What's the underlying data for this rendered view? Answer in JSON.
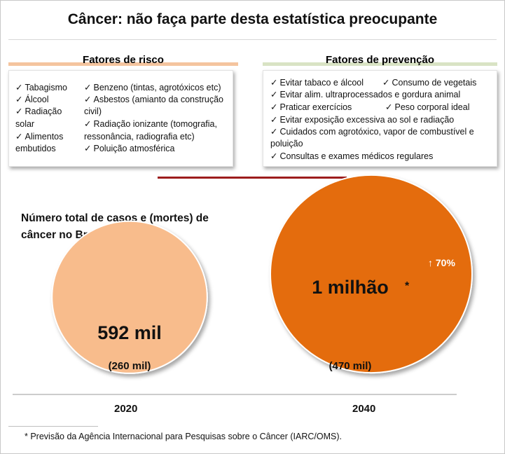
{
  "title": "Câncer: não faça parte desta estatística preocupante",
  "risk_panel": {
    "header": "Fatores de risco",
    "items": [
      "Tabagismo",
      "Álcool",
      "Radiação",
      "solar",
      "Alimentos",
      "embutidos",
      "Benzeno (tintas, agrotóxicos etc)",
      "Asbestos (amianto da construção",
      "civil)",
      "Radiação ionizante (tomografia,",
      "ressonância,  radiografia etc)",
      "Poluição atmosférica"
    ]
  },
  "prevention_panel": {
    "header": "Fatores de prevenção",
    "items": [
      "Evitar tabaco e álcool",
      "Consumo de vegetais",
      "Evitar alim. ultraprocessados e gordura animal",
      "Praticar exercícios",
      "Peso corporal ideal",
      "Evitar exposição excessiva ao sol e radiação",
      "Cuidados com agrotóxico, vapor de combustível e",
      "poluição",
      "Consultas e exames médicos regulares"
    ]
  },
  "check_glyph": "✓",
  "colors": {
    "bubble_2020": "#f8bc8c",
    "bubble_2040": "#e46c0a",
    "divider": "#9c1c1c",
    "risk_accent": "#f4c49e",
    "prevention_accent": "#d9e3c4"
  },
  "chart_data": {
    "type": "bubble",
    "title": "Número total de casos e (mortes) de câncer no Brasil.",
    "categories": [
      "2020",
      "2040"
    ],
    "series": [
      {
        "values": [
          592000,
          1000000
        ]
      },
      {
        "values": [
          260000,
          470000
        ]
      }
    ],
    "point_labels": {
      "cases": [
        "592 mil",
        "1 milhão"
      ],
      "deaths": [
        "(260 mil)",
        "(470 mil)"
      ],
      "asterisk": "*",
      "growth": "↑ 70%"
    }
  },
  "footnote": "* Previsão da Agência Internacional para Pesquisas sobre o Câncer (IARC/OMS)."
}
